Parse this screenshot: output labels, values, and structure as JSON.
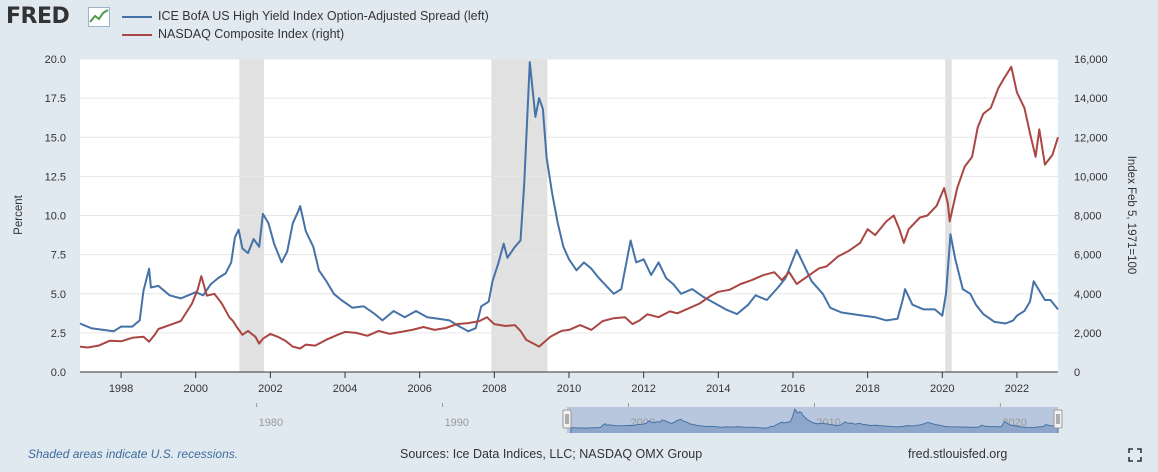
{
  "header": {
    "logo_text": "FRED",
    "legend": [
      {
        "label": "ICE BofA US High Yield Index Option-Adjusted Spread (left)",
        "color": "#4572a7"
      },
      {
        "label": "NASDAQ Composite Index (right)",
        "color": "#aa4643"
      }
    ]
  },
  "footer": {
    "recession_note": "Shaded areas indicate U.S. recessions.",
    "sources": "Sources: Ice Data Indices, LLC; NASDAQ OMX Group",
    "url": "fred.stlouisfed.org"
  },
  "navigator": {
    "ticks": [
      "1980",
      "1990",
      "2000",
      "2010",
      "2020"
    ]
  },
  "chart_data": {
    "type": "line",
    "xlabel": "",
    "xlim": [
      1996.9,
      2023.1
    ],
    "x_ticks": [
      "1998",
      "2000",
      "2002",
      "2004",
      "2006",
      "2008",
      "2010",
      "2012",
      "2014",
      "2016",
      "2018",
      "2020",
      "2022"
    ],
    "y_left": {
      "label": "Percent",
      "lim": [
        0,
        20
      ],
      "ticks": [
        "0.0",
        "2.5",
        "5.0",
        "7.5",
        "10.0",
        "12.5",
        "15.0",
        "17.5",
        "20.0"
      ]
    },
    "y_right": {
      "label": "Index Feb 5, 1971=100",
      "lim": [
        0,
        16000
      ],
      "ticks": [
        "0",
        "2,000",
        "4,000",
        "6,000",
        "8,000",
        "10,000",
        "12,000",
        "14,000",
        "16,000"
      ]
    },
    "grid": true,
    "recessions": [
      [
        2001.17,
        2001.83
      ],
      [
        2007.92,
        2009.42
      ],
      [
        2020.08,
        2020.25
      ]
    ],
    "series": [
      {
        "name": "ICE BofA US High Yield Index Option-Adjusted Spread (left)",
        "axis": "left",
        "color": "#4572a7",
        "points": [
          [
            1996.9,
            3.1
          ],
          [
            1997.2,
            2.8
          ],
          [
            1997.5,
            2.7
          ],
          [
            1997.8,
            2.6
          ],
          [
            1998.0,
            2.9
          ],
          [
            1998.3,
            2.9
          ],
          [
            1998.5,
            3.3
          ],
          [
            1998.6,
            5.2
          ],
          [
            1998.75,
            6.6
          ],
          [
            1998.8,
            5.4
          ],
          [
            1999.0,
            5.5
          ],
          [
            1999.3,
            4.9
          ],
          [
            1999.6,
            4.7
          ],
          [
            1999.8,
            4.9
          ],
          [
            2000.0,
            5.1
          ],
          [
            2000.2,
            4.9
          ],
          [
            2000.4,
            5.6
          ],
          [
            2000.6,
            6.0
          ],
          [
            2000.8,
            6.3
          ],
          [
            2000.95,
            7.0
          ],
          [
            2001.05,
            8.6
          ],
          [
            2001.15,
            9.1
          ],
          [
            2001.25,
            7.9
          ],
          [
            2001.4,
            7.6
          ],
          [
            2001.55,
            8.5
          ],
          [
            2001.7,
            8.0
          ],
          [
            2001.8,
            10.1
          ],
          [
            2001.95,
            9.5
          ],
          [
            2002.1,
            8.2
          ],
          [
            2002.3,
            7.0
          ],
          [
            2002.45,
            7.7
          ],
          [
            2002.6,
            9.5
          ],
          [
            2002.75,
            10.3
          ],
          [
            2002.8,
            10.6
          ],
          [
            2002.95,
            9.0
          ],
          [
            2003.15,
            8.0
          ],
          [
            2003.3,
            6.5
          ],
          [
            2003.5,
            5.8
          ],
          [
            2003.7,
            5.0
          ],
          [
            2003.9,
            4.6
          ],
          [
            2004.2,
            4.1
          ],
          [
            2004.5,
            4.2
          ],
          [
            2004.8,
            3.7
          ],
          [
            2005.0,
            3.3
          ],
          [
            2005.3,
            3.9
          ],
          [
            2005.6,
            3.5
          ],
          [
            2005.9,
            3.9
          ],
          [
            2006.2,
            3.5
          ],
          [
            2006.5,
            3.4
          ],
          [
            2006.8,
            3.3
          ],
          [
            2007.0,
            3.0
          ],
          [
            2007.3,
            2.6
          ],
          [
            2007.5,
            2.8
          ],
          [
            2007.65,
            4.2
          ],
          [
            2007.85,
            4.5
          ],
          [
            2007.95,
            5.8
          ],
          [
            2008.1,
            6.9
          ],
          [
            2008.25,
            8.2
          ],
          [
            2008.35,
            7.3
          ],
          [
            2008.55,
            8.0
          ],
          [
            2008.7,
            8.4
          ],
          [
            2008.8,
            12.0
          ],
          [
            2008.95,
            19.8
          ],
          [
            2009.1,
            16.3
          ],
          [
            2009.2,
            17.5
          ],
          [
            2009.3,
            16.8
          ],
          [
            2009.4,
            13.7
          ],
          [
            2009.55,
            11.4
          ],
          [
            2009.7,
            9.5
          ],
          [
            2009.85,
            8.0
          ],
          [
            2010.0,
            7.2
          ],
          [
            2010.2,
            6.5
          ],
          [
            2010.4,
            7.0
          ],
          [
            2010.6,
            6.6
          ],
          [
            2010.8,
            6.0
          ],
          [
            2011.0,
            5.5
          ],
          [
            2011.2,
            5.0
          ],
          [
            2011.4,
            5.3
          ],
          [
            2011.65,
            8.4
          ],
          [
            2011.8,
            7.0
          ],
          [
            2012.0,
            7.2
          ],
          [
            2012.2,
            6.2
          ],
          [
            2012.4,
            7.0
          ],
          [
            2012.6,
            6.0
          ],
          [
            2012.8,
            5.6
          ],
          [
            2013.0,
            5.0
          ],
          [
            2013.3,
            5.3
          ],
          [
            2013.6,
            4.8
          ],
          [
            2013.9,
            4.4
          ],
          [
            2014.2,
            4.0
          ],
          [
            2014.5,
            3.7
          ],
          [
            2014.8,
            4.3
          ],
          [
            2015.0,
            4.9
          ],
          [
            2015.3,
            4.6
          ],
          [
            2015.6,
            5.4
          ],
          [
            2015.8,
            6.0
          ],
          [
            2016.0,
            7.2
          ],
          [
            2016.1,
            7.8
          ],
          [
            2016.3,
            6.8
          ],
          [
            2016.5,
            5.8
          ],
          [
            2016.8,
            5.0
          ],
          [
            2017.0,
            4.1
          ],
          [
            2017.3,
            3.8
          ],
          [
            2017.6,
            3.7
          ],
          [
            2017.9,
            3.6
          ],
          [
            2018.2,
            3.5
          ],
          [
            2018.5,
            3.3
          ],
          [
            2018.8,
            3.4
          ],
          [
            2018.95,
            4.7
          ],
          [
            2019.0,
            5.3
          ],
          [
            2019.2,
            4.3
          ],
          [
            2019.5,
            4.0
          ],
          [
            2019.8,
            4.0
          ],
          [
            2020.0,
            3.6
          ],
          [
            2020.1,
            5.0
          ],
          [
            2020.22,
            8.8
          ],
          [
            2020.35,
            7.2
          ],
          [
            2020.55,
            5.3
          ],
          [
            2020.75,
            5.0
          ],
          [
            2020.9,
            4.3
          ],
          [
            2021.1,
            3.7
          ],
          [
            2021.4,
            3.2
          ],
          [
            2021.7,
            3.1
          ],
          [
            2021.9,
            3.3
          ],
          [
            2022.0,
            3.6
          ],
          [
            2022.2,
            3.9
          ],
          [
            2022.35,
            4.5
          ],
          [
            2022.45,
            5.8
          ],
          [
            2022.6,
            5.2
          ],
          [
            2022.75,
            4.6
          ],
          [
            2022.9,
            4.6
          ],
          [
            2023.1,
            4.0
          ]
        ]
      },
      {
        "name": "NASDAQ Composite Index (right)",
        "axis": "right",
        "color": "#aa4643",
        "points": [
          [
            1996.9,
            1300
          ],
          [
            1997.1,
            1250
          ],
          [
            1997.4,
            1350
          ],
          [
            1997.7,
            1600
          ],
          [
            1998.0,
            1570
          ],
          [
            1998.3,
            1750
          ],
          [
            1998.6,
            1800
          ],
          [
            1998.75,
            1550
          ],
          [
            1998.9,
            1900
          ],
          [
            1999.0,
            2200
          ],
          [
            1999.3,
            2400
          ],
          [
            1999.6,
            2600
          ],
          [
            1999.9,
            3500
          ],
          [
            2000.05,
            4200
          ],
          [
            2000.15,
            4900
          ],
          [
            2000.3,
            3900
          ],
          [
            2000.5,
            4000
          ],
          [
            2000.7,
            3500
          ],
          [
            2000.9,
            2800
          ],
          [
            2001.0,
            2600
          ],
          [
            2001.1,
            2300
          ],
          [
            2001.25,
            1900
          ],
          [
            2001.4,
            2100
          ],
          [
            2001.6,
            1800
          ],
          [
            2001.7,
            1450
          ],
          [
            2001.8,
            1700
          ],
          [
            2002.0,
            1950
          ],
          [
            2002.2,
            1800
          ],
          [
            2002.4,
            1600
          ],
          [
            2002.6,
            1300
          ],
          [
            2002.8,
            1200
          ],
          [
            2002.95,
            1400
          ],
          [
            2003.2,
            1350
          ],
          [
            2003.5,
            1650
          ],
          [
            2003.8,
            1900
          ],
          [
            2004.0,
            2050
          ],
          [
            2004.3,
            2000
          ],
          [
            2004.6,
            1850
          ],
          [
            2004.9,
            2100
          ],
          [
            2005.2,
            1950
          ],
          [
            2005.5,
            2050
          ],
          [
            2005.8,
            2150
          ],
          [
            2006.1,
            2300
          ],
          [
            2006.4,
            2150
          ],
          [
            2006.7,
            2250
          ],
          [
            2007.0,
            2450
          ],
          [
            2007.3,
            2500
          ],
          [
            2007.6,
            2600
          ],
          [
            2007.8,
            2800
          ],
          [
            2008.0,
            2450
          ],
          [
            2008.3,
            2350
          ],
          [
            2008.55,
            2400
          ],
          [
            2008.7,
            2100
          ],
          [
            2008.85,
            1650
          ],
          [
            2009.1,
            1400
          ],
          [
            2009.2,
            1300
          ],
          [
            2009.5,
            1800
          ],
          [
            2009.8,
            2100
          ],
          [
            2010.0,
            2150
          ],
          [
            2010.3,
            2400
          ],
          [
            2010.6,
            2150
          ],
          [
            2010.9,
            2600
          ],
          [
            2011.2,
            2750
          ],
          [
            2011.5,
            2800
          ],
          [
            2011.7,
            2450
          ],
          [
            2011.9,
            2650
          ],
          [
            2012.1,
            2950
          ],
          [
            2012.4,
            2800
          ],
          [
            2012.7,
            3100
          ],
          [
            2012.9,
            3000
          ],
          [
            2013.2,
            3250
          ],
          [
            2013.5,
            3500
          ],
          [
            2013.8,
            3900
          ],
          [
            2014.0,
            4100
          ],
          [
            2014.3,
            4200
          ],
          [
            2014.6,
            4500
          ],
          [
            2014.9,
            4700
          ],
          [
            2015.2,
            4950
          ],
          [
            2015.5,
            5100
          ],
          [
            2015.7,
            4700
          ],
          [
            2015.9,
            5100
          ],
          [
            2016.1,
            4500
          ],
          [
            2016.4,
            4900
          ],
          [
            2016.7,
            5300
          ],
          [
            2016.9,
            5400
          ],
          [
            2017.2,
            5900
          ],
          [
            2017.5,
            6200
          ],
          [
            2017.8,
            6600
          ],
          [
            2018.0,
            7300
          ],
          [
            2018.2,
            7000
          ],
          [
            2018.5,
            7700
          ],
          [
            2018.7,
            8000
          ],
          [
            2018.85,
            7300
          ],
          [
            2018.97,
            6600
          ],
          [
            2019.1,
            7300
          ],
          [
            2019.4,
            7900
          ],
          [
            2019.6,
            8000
          ],
          [
            2019.85,
            8500
          ],
          [
            2020.05,
            9400
          ],
          [
            2020.15,
            8600
          ],
          [
            2020.2,
            7700
          ],
          [
            2020.4,
            9400
          ],
          [
            2020.6,
            10500
          ],
          [
            2020.8,
            11000
          ],
          [
            2020.95,
            12500
          ],
          [
            2021.1,
            13200
          ],
          [
            2021.3,
            13500
          ],
          [
            2021.5,
            14500
          ],
          [
            2021.65,
            15000
          ],
          [
            2021.85,
            15600
          ],
          [
            2022.0,
            14300
          ],
          [
            2022.2,
            13500
          ],
          [
            2022.35,
            12200
          ],
          [
            2022.5,
            11000
          ],
          [
            2022.6,
            12400
          ],
          [
            2022.75,
            10600
          ],
          [
            2022.95,
            11100
          ],
          [
            2023.1,
            12000
          ]
        ]
      }
    ]
  }
}
